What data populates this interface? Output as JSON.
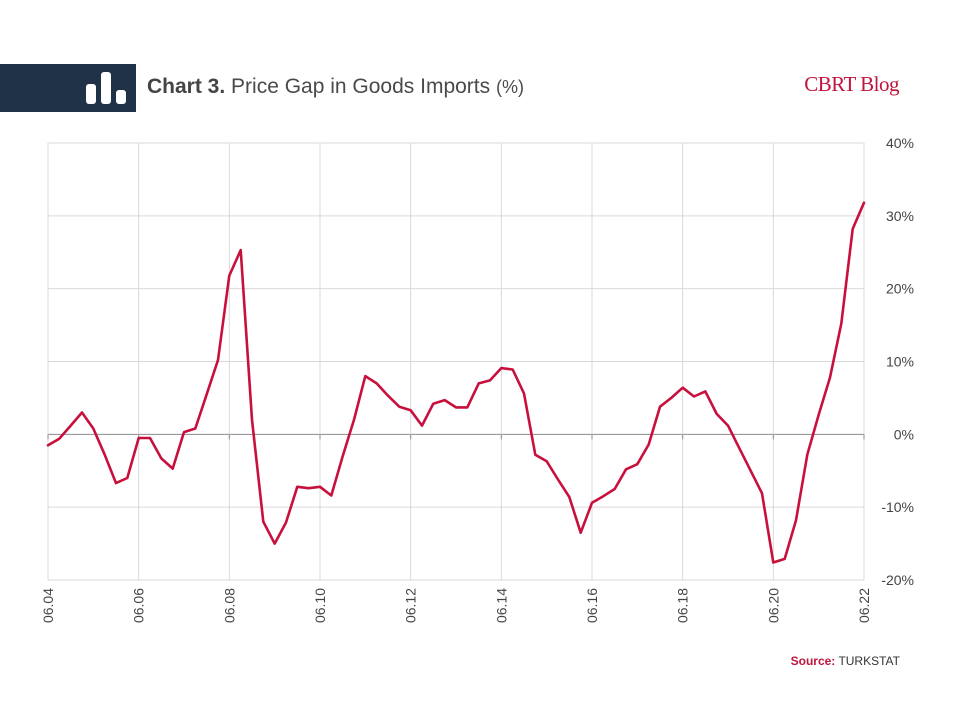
{
  "header": {
    "title_lead": "Chart 3.",
    "title_main": "Price Gap in Goods Imports",
    "title_unit": "(%)",
    "brand": "CBRT Blog",
    "band_color": "#1f3247",
    "icon": "bar-chart-icon"
  },
  "source": {
    "label": "Source:",
    "value": "TURKSTAT"
  },
  "chart_data": {
    "type": "line",
    "title": "Price Gap in Goods Imports (%)",
    "xlabel": "",
    "ylabel": "",
    "ylim": [
      -20,
      40
    ],
    "xlim": [
      2004.417,
      2022.417
    ],
    "grid": true,
    "legend": "none",
    "line_color": "#c8103c",
    "yticks": [
      {
        "value": 40,
        "label": "40%"
      },
      {
        "value": 30,
        "label": "30%"
      },
      {
        "value": 20,
        "label": "20%"
      },
      {
        "value": 10,
        "label": "10%"
      },
      {
        "value": 0,
        "label": "0%"
      },
      {
        "value": -10,
        "label": "-10%"
      },
      {
        "value": -20,
        "label": "-20%"
      }
    ],
    "xticks": [
      {
        "value": 2004.417,
        "label": "06.04"
      },
      {
        "value": 2006.417,
        "label": "06.06"
      },
      {
        "value": 2008.417,
        "label": "06.08"
      },
      {
        "value": 2010.417,
        "label": "06.10"
      },
      {
        "value": 2012.417,
        "label": "06.12"
      },
      {
        "value": 2014.417,
        "label": "06.14"
      },
      {
        "value": 2016.417,
        "label": "06.16"
      },
      {
        "value": 2018.417,
        "label": "06.18"
      },
      {
        "value": 2020.417,
        "label": "06.20"
      },
      {
        "value": 2022.417,
        "label": "06.22"
      }
    ],
    "series": [
      {
        "x": [
          2004.417,
          2004.667,
          2004.917,
          2005.167,
          2005.417,
          2005.667,
          2005.917,
          2006.167,
          2006.417,
          2006.667,
          2006.917,
          2007.167,
          2007.417,
          2007.667,
          2007.917,
          2008.167,
          2008.417,
          2008.667,
          2008.917,
          2009.167,
          2009.417,
          2009.667,
          2009.917,
          2010.167,
          2010.417,
          2010.667,
          2010.917,
          2011.167,
          2011.417,
          2011.667,
          2011.917,
          2012.167,
          2012.417,
          2012.667,
          2012.917,
          2013.167,
          2013.417,
          2013.667,
          2013.917,
          2014.167,
          2014.417,
          2014.667,
          2014.917,
          2015.167,
          2015.417,
          2015.667,
          2015.917,
          2016.167,
          2016.417,
          2016.667,
          2016.917,
          2017.167,
          2017.417,
          2017.667,
          2017.917,
          2018.167,
          2018.417,
          2018.667,
          2018.917,
          2019.167,
          2019.417,
          2019.667,
          2019.917,
          2020.167,
          2020.417,
          2020.667,
          2020.917,
          2021.167,
          2021.417,
          2021.667,
          2021.917,
          2022.167,
          2022.417
        ],
        "values": [
          -1.5,
          -0.6,
          1.2,
          3.0,
          0.8,
          -2.8,
          -6.7,
          -6.0,
          -0.5,
          -0.5,
          -3.3,
          -4.7,
          0.3,
          0.8,
          5.5,
          10.2,
          21.8,
          25.3,
          2.0,
          -12.0,
          -15.0,
          -12.1,
          -7.2,
          -7.4,
          -7.2,
          -8.4,
          -3.0,
          2.0,
          8.0,
          7.0,
          5.3,
          3.8,
          3.3,
          1.2,
          4.2,
          4.7,
          3.7,
          3.7,
          7.0,
          7.4,
          9.1,
          8.9,
          5.6,
          -2.8,
          -3.7,
          -6.2,
          -8.6,
          -13.5,
          -9.4,
          -8.5,
          -7.5,
          -4.8,
          -4.1,
          -1.4,
          3.8,
          5.0,
          6.4,
          5.2,
          5.9,
          2.8,
          1.2,
          -1.9,
          -5.0,
          -8.1,
          -17.6,
          -17.1,
          -11.8,
          -2.8,
          2.7,
          7.8,
          15.2,
          28.2,
          31.8
        ]
      }
    ]
  }
}
